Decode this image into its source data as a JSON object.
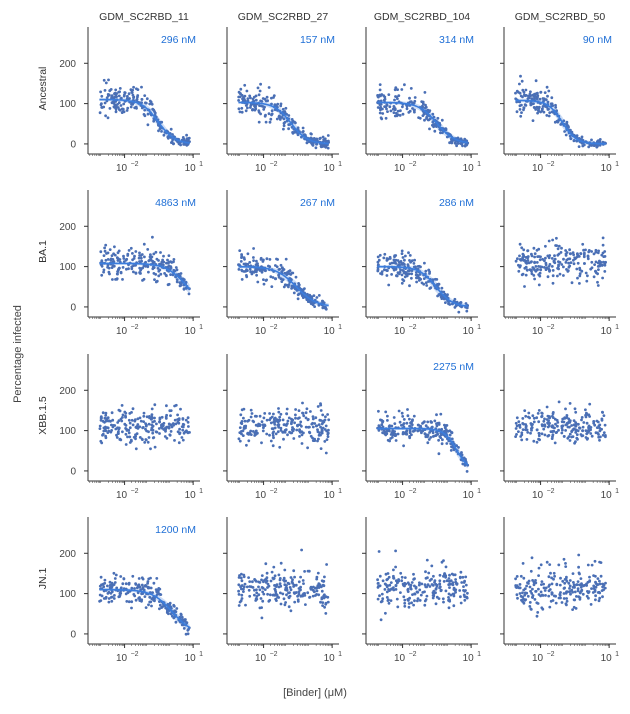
{
  "figure": {
    "xlabel": "[Binder] (μM)",
    "ylabel": "Percentage infected",
    "columns": [
      "GDM_SC2RBD_11",
      "GDM_SC2RBD_27",
      "GDM_SC2RBD_104",
      "GDM_SC2RBD_50"
    ],
    "rows": [
      "Ancestral",
      "BA.1",
      "XBB.1.5",
      "JN.1"
    ],
    "x_tick_labels": [
      "10",
      "−2",
      "10",
      "1"
    ],
    "y_ticks": [
      0,
      100,
      200
    ],
    "colors": {
      "points": "#4a6fb5",
      "fit": "#3b7ddd",
      "ic50_text": "#1f6fd6",
      "axis": "#555555"
    }
  },
  "chart_data": {
    "type": "scatter",
    "description_units": {
      "x": "log10 concentration (μM)",
      "y": "percentage infected"
    },
    "xlim_log10": [
      -3.6,
      1.3
    ],
    "ylim": [
      -25,
      290
    ],
    "title": "",
    "xlabel": "[Binder] (μM)",
    "ylabel": "Percentage infected",
    "panels": [
      {
        "row": "Ancestral",
        "col": "GDM_SC2RBD_11",
        "ic50_label": "296 nM",
        "fit": {
          "top": 110,
          "log_ic50": -0.53,
          "hill": 1.2
        }
      },
      {
        "row": "Ancestral",
        "col": "GDM_SC2RBD_27",
        "ic50_label": "157 nM",
        "fit": {
          "top": 103,
          "log_ic50": -0.8,
          "hill": 1.2
        }
      },
      {
        "row": "Ancestral",
        "col": "GDM_SC2RBD_104",
        "ic50_label": "314 nM",
        "fit": {
          "top": 103,
          "log_ic50": -0.5,
          "hill": 1.1
        }
      },
      {
        "row": "Ancestral",
        "col": "GDM_SC2RBD_50",
        "ic50_label": "90 nM",
        "fit": {
          "top": 108,
          "log_ic50": -1.05,
          "hill": 1.4
        }
      },
      {
        "row": "BA.1",
        "col": "GDM_SC2RBD_11",
        "ic50_label": "4863 nM",
        "fit": {
          "top": 108,
          "log_ic50": 0.69,
          "hill": 1.0
        }
      },
      {
        "row": "BA.1",
        "col": "GDM_SC2RBD_27",
        "ic50_label": "267 nM",
        "fit": {
          "top": 100,
          "log_ic50": -0.57,
          "hill": 1.0
        }
      },
      {
        "row": "BA.1",
        "col": "GDM_SC2RBD_104",
        "ic50_label": "286 nM",
        "fit": {
          "top": 100,
          "log_ic50": -0.54,
          "hill": 1.2
        }
      },
      {
        "row": "BA.1",
        "col": "GDM_SC2RBD_50",
        "ic50_label": "",
        "fit": null
      },
      {
        "row": "XBB.1.5",
        "col": "GDM_SC2RBD_11",
        "ic50_label": "",
        "fit": null
      },
      {
        "row": "XBB.1.5",
        "col": "GDM_SC2RBD_27",
        "ic50_label": "",
        "fit": null
      },
      {
        "row": "XBB.1.5",
        "col": "GDM_SC2RBD_104",
        "ic50_label": "2275 nM",
        "fit": {
          "top": 105,
          "log_ic50": 0.36,
          "hill": 1.6
        }
      },
      {
        "row": "XBB.1.5",
        "col": "GDM_SC2RBD_50",
        "ic50_label": "",
        "fit": null
      },
      {
        "row": "JN.1",
        "col": "GDM_SC2RBD_11",
        "ic50_label": "1200 nM",
        "fit": {
          "top": 110,
          "log_ic50": 0.08,
          "hill": 1.0
        }
      },
      {
        "row": "JN.1",
        "col": "GDM_SC2RBD_27",
        "ic50_label": "",
        "fit": null
      },
      {
        "row": "JN.1",
        "col": "GDM_SC2RBD_104",
        "ic50_label": "",
        "fit": null
      },
      {
        "row": "JN.1",
        "col": "GDM_SC2RBD_50",
        "ic50_label": "",
        "fit": null
      }
    ]
  }
}
